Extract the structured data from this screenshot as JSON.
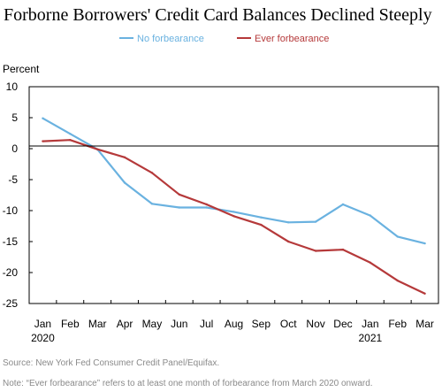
{
  "chart_data": {
    "type": "line",
    "title": "Forborne Borrowers' Credit Card Balances Declined Steeply",
    "ylabel": "Percent",
    "xlabel": "",
    "ylim": [
      -25,
      10
    ],
    "yticks": [
      10,
      5,
      0,
      -5,
      -10,
      -15,
      -20,
      -25
    ],
    "categories": [
      "Jan",
      "Feb",
      "Mar",
      "Apr",
      "May",
      "Jun",
      "Jul",
      "Aug",
      "Sep",
      "Oct",
      "Nov",
      "Dec",
      "Jan",
      "Feb",
      "Mar"
    ],
    "year_labels": [
      {
        "index": 0,
        "label": "2020"
      },
      {
        "index": 12,
        "label": "2021"
      }
    ],
    "grid": false,
    "zero_line": true,
    "legend_position": "top-center",
    "series": [
      {
        "name": "No forbearance",
        "color": "#6ab2e0",
        "values": [
          4.9,
          2.4,
          -0.1,
          -5.5,
          -8.9,
          -9.5,
          -9.5,
          -10.2,
          -11.1,
          -11.9,
          -11.8,
          -9.0,
          -10.8,
          -14.2,
          -15.3
        ]
      },
      {
        "name": "Ever forbearance",
        "color": "#b5393a",
        "values": [
          1.2,
          1.4,
          -0.1,
          -1.4,
          -3.9,
          -7.4,
          -9.0,
          -10.9,
          -12.3,
          -15.0,
          -16.5,
          -16.3,
          -18.4,
          -21.3,
          -23.4
        ]
      }
    ]
  },
  "source_note": "Source: New York Fed Consumer Credit Panel/Equifax.",
  "explanatory_note": "Note: “Ever forbearance” refers to at least one month of forbearance from March 2020 onward."
}
